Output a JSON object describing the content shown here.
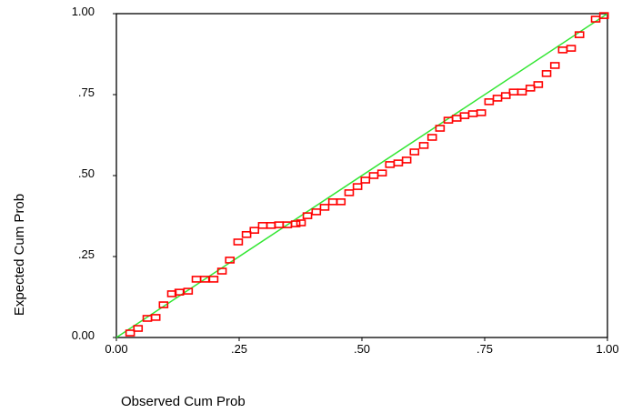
{
  "chart_data": {
    "type": "scatter",
    "xlabel": "Observed Cum Prob",
    "ylabel": "Expected Cum Prob",
    "xlim": [
      0,
      1
    ],
    "ylim": [
      0,
      1
    ],
    "xticks": [
      {
        "value": 0,
        "label": "0.00"
      },
      {
        "value": 0.25,
        "label": ".25"
      },
      {
        "value": 0.5,
        "label": ".50"
      },
      {
        "value": 0.75,
        "label": ".75"
      },
      {
        "value": 1,
        "label": "1.00"
      }
    ],
    "yticks": [
      {
        "value": 0,
        "label": "0.00"
      },
      {
        "value": 0.25,
        "label": ".25"
      },
      {
        "value": 0.5,
        "label": ".50"
      },
      {
        "value": 0.75,
        "label": ".75"
      },
      {
        "value": 1,
        "label": "1.00"
      }
    ],
    "color": "#ff0000",
    "reference_line_color": "#33e633",
    "x": [
      0.028,
      0.044,
      0.063,
      0.08,
      0.096,
      0.113,
      0.128,
      0.146,
      0.163,
      0.18,
      0.198,
      0.215,
      0.231,
      0.248,
      0.265,
      0.281,
      0.298,
      0.315,
      0.331,
      0.348,
      0.365,
      0.376,
      0.389,
      0.407,
      0.424,
      0.441,
      0.457,
      0.474,
      0.491,
      0.507,
      0.524,
      0.541,
      0.557,
      0.574,
      0.591,
      0.607,
      0.626,
      0.643,
      0.659,
      0.676,
      0.693,
      0.709,
      0.726,
      0.743,
      0.759,
      0.776,
      0.793,
      0.809,
      0.826,
      0.843,
      0.859,
      0.876,
      0.893,
      0.909,
      0.926,
      0.943,
      0.976,
      0.993
    ],
    "values": [
      0.014,
      0.028,
      0.059,
      0.062,
      0.101,
      0.135,
      0.14,
      0.143,
      0.18,
      0.18,
      0.18,
      0.205,
      0.239,
      0.295,
      0.318,
      0.331,
      0.346,
      0.346,
      0.348,
      0.348,
      0.351,
      0.354,
      0.376,
      0.388,
      0.402,
      0.419,
      0.419,
      0.447,
      0.466,
      0.486,
      0.5,
      0.508,
      0.534,
      0.539,
      0.548,
      0.573,
      0.593,
      0.618,
      0.646,
      0.671,
      0.677,
      0.685,
      0.691,
      0.694,
      0.728,
      0.739,
      0.747,
      0.758,
      0.758,
      0.77,
      0.781,
      0.815,
      0.84,
      0.888,
      0.893,
      0.935,
      0.983,
      0.994
    ]
  }
}
